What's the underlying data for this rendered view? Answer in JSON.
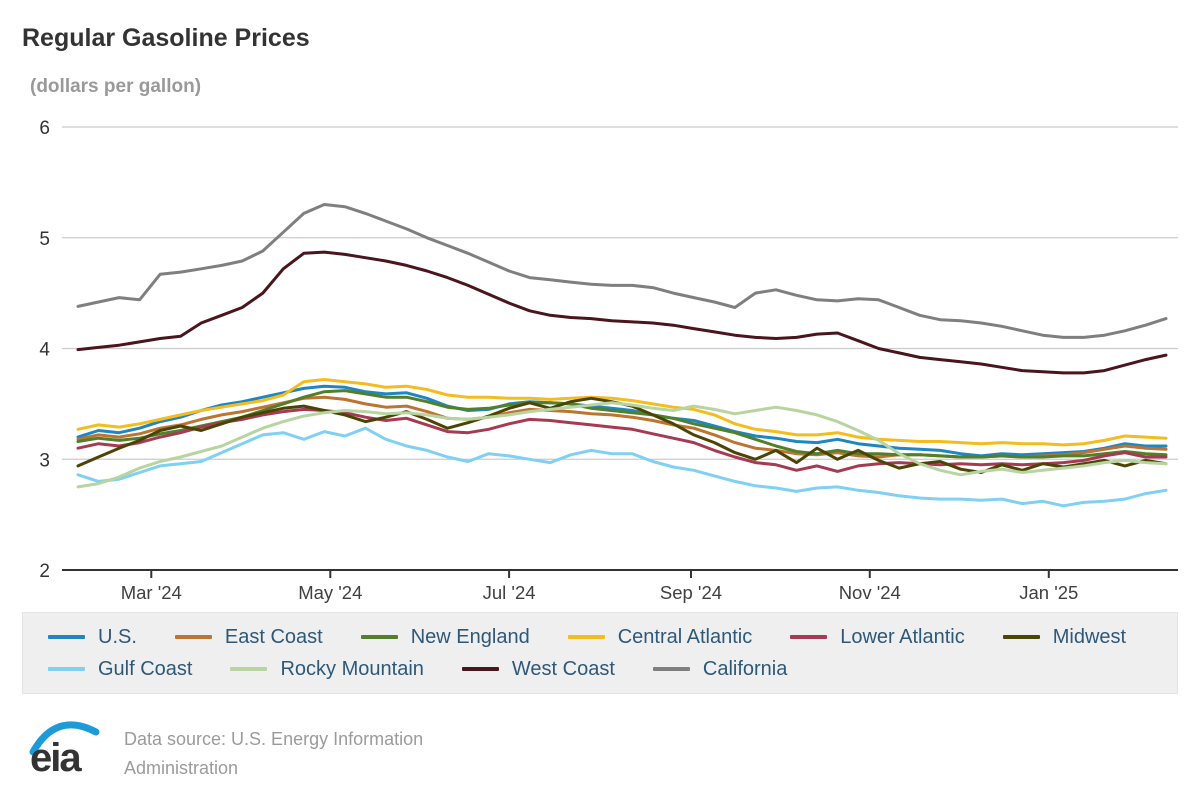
{
  "header": {
    "title": "Regular Gasoline Prices",
    "subtitle": "(dollars per gallon)"
  },
  "footer": {
    "logo_text": "eia",
    "source_line1": "Data source: U.S. Energy Information",
    "source_line2": "Administration"
  },
  "colors": {
    "grid": "#cccccc",
    "axis": "#333333",
    "tick_label": "#404040",
    "legend_bg": "#efefef",
    "legend_text": "#2e5878",
    "eia_blue": "#1d9bd8"
  },
  "chart_data": {
    "type": "line",
    "title": "Regular Gasoline Prices",
    "xlabel": "",
    "ylabel": "dollars per gallon",
    "ylim": [
      2,
      6
    ],
    "yticks": [
      2,
      3,
      4,
      5,
      6
    ],
    "grid": "horizontal",
    "legend_position": "bottom",
    "x_unit": "weekly, Feb 2024 - Feb 2025",
    "xticks": [
      {
        "label": "Mar '24",
        "pos": 3.57
      },
      {
        "label": "May '24",
        "pos": 12.29
      },
      {
        "label": "Jul '24",
        "pos": 21.0
      },
      {
        "label": "Sep '24",
        "pos": 29.86
      },
      {
        "label": "Nov '24",
        "pos": 38.57
      },
      {
        "label": "Jan '25",
        "pos": 47.29
      }
    ],
    "series": [
      {
        "name": "U.S.",
        "color": "#1e87c2",
        "values": [
          3.2,
          3.26,
          3.24,
          3.28,
          3.34,
          3.38,
          3.44,
          3.49,
          3.52,
          3.56,
          3.6,
          3.64,
          3.66,
          3.65,
          3.61,
          3.59,
          3.6,
          3.55,
          3.48,
          3.44,
          3.45,
          3.5,
          3.52,
          3.51,
          3.5,
          3.48,
          3.46,
          3.44,
          3.4,
          3.37,
          3.35,
          3.3,
          3.25,
          3.21,
          3.19,
          3.16,
          3.15,
          3.18,
          3.14,
          3.12,
          3.1,
          3.09,
          3.08,
          3.05,
          3.03,
          3.05,
          3.04,
          3.05,
          3.06,
          3.07,
          3.1,
          3.14,
          3.12,
          3.12
        ]
      },
      {
        "name": "East Coast",
        "color": "#bd7430",
        "values": [
          3.18,
          3.22,
          3.2,
          3.23,
          3.28,
          3.31,
          3.36,
          3.4,
          3.43,
          3.47,
          3.51,
          3.55,
          3.56,
          3.54,
          3.5,
          3.47,
          3.48,
          3.43,
          3.37,
          3.36,
          3.38,
          3.42,
          3.45,
          3.44,
          3.43,
          3.41,
          3.4,
          3.38,
          3.35,
          3.31,
          3.28,
          3.22,
          3.15,
          3.1,
          3.08,
          3.05,
          3.04,
          3.06,
          3.03,
          3.02,
          3.04,
          3.04,
          3.03,
          3.02,
          3.02,
          3.03,
          3.02,
          3.03,
          3.04,
          3.06,
          3.09,
          3.12,
          3.1,
          3.09
        ]
      },
      {
        "name": "New England",
        "color": "#527f2a",
        "values": [
          3.16,
          3.19,
          3.17,
          3.19,
          3.23,
          3.26,
          3.3,
          3.34,
          3.38,
          3.44,
          3.5,
          3.56,
          3.61,
          3.62,
          3.59,
          3.56,
          3.56,
          3.52,
          3.47,
          3.45,
          3.46,
          3.49,
          3.51,
          3.51,
          3.5,
          3.46,
          3.44,
          3.42,
          3.4,
          3.37,
          3.32,
          3.28,
          3.24,
          3.18,
          3.12,
          3.07,
          3.05,
          3.08,
          3.05,
          3.05,
          3.04,
          3.04,
          3.03,
          3.02,
          3.02,
          3.03,
          3.02,
          3.02,
          3.03,
          3.03,
          3.05,
          3.07,
          3.05,
          3.04
        ]
      },
      {
        "name": "Central Atlantic",
        "color": "#f4bc1c",
        "values": [
          3.27,
          3.31,
          3.29,
          3.32,
          3.36,
          3.4,
          3.44,
          3.47,
          3.5,
          3.53,
          3.58,
          3.7,
          3.72,
          3.7,
          3.68,
          3.65,
          3.66,
          3.63,
          3.58,
          3.56,
          3.56,
          3.55,
          3.55,
          3.54,
          3.55,
          3.56,
          3.55,
          3.53,
          3.5,
          3.47,
          3.45,
          3.4,
          3.32,
          3.27,
          3.25,
          3.22,
          3.22,
          3.24,
          3.2,
          3.18,
          3.17,
          3.16,
          3.16,
          3.15,
          3.14,
          3.15,
          3.14,
          3.14,
          3.13,
          3.14,
          3.17,
          3.21,
          3.2,
          3.19
        ]
      },
      {
        "name": "Lower Atlantic",
        "color": "#a63a52",
        "values": [
          3.1,
          3.14,
          3.12,
          3.15,
          3.2,
          3.24,
          3.29,
          3.33,
          3.36,
          3.4,
          3.43,
          3.45,
          3.44,
          3.42,
          3.38,
          3.35,
          3.37,
          3.31,
          3.25,
          3.24,
          3.27,
          3.32,
          3.36,
          3.35,
          3.33,
          3.31,
          3.29,
          3.27,
          3.23,
          3.19,
          3.15,
          3.08,
          3.02,
          2.97,
          2.95,
          2.9,
          2.94,
          2.89,
          2.94,
          2.96,
          2.97,
          2.96,
          2.95,
          2.96,
          2.95,
          2.96,
          2.95,
          2.96,
          2.97,
          2.99,
          3.03,
          3.06,
          3.02,
          3.02
        ]
      },
      {
        "name": "Midwest",
        "color": "#4a4405",
        "values": [
          2.94,
          3.02,
          3.1,
          3.17,
          3.26,
          3.3,
          3.26,
          3.32,
          3.38,
          3.42,
          3.46,
          3.48,
          3.44,
          3.4,
          3.34,
          3.38,
          3.43,
          3.36,
          3.28,
          3.33,
          3.39,
          3.46,
          3.51,
          3.46,
          3.52,
          3.55,
          3.52,
          3.48,
          3.4,
          3.32,
          3.22,
          3.15,
          3.06,
          3.0,
          3.08,
          2.97,
          3.1,
          3.0,
          3.08,
          2.99,
          2.92,
          2.96,
          2.98,
          2.91,
          2.88,
          2.95,
          2.9,
          2.96,
          2.93,
          2.96,
          2.99,
          2.94,
          2.99,
          2.96
        ]
      },
      {
        "name": "Gulf Coast",
        "color": "#7fd0f2",
        "values": [
          2.86,
          2.8,
          2.82,
          2.88,
          2.94,
          2.96,
          2.98,
          3.06,
          3.14,
          3.22,
          3.24,
          3.18,
          3.25,
          3.21,
          3.28,
          3.18,
          3.12,
          3.08,
          3.02,
          2.98,
          3.05,
          3.03,
          3.0,
          2.97,
          3.04,
          3.08,
          3.05,
          3.05,
          2.98,
          2.93,
          2.9,
          2.85,
          2.8,
          2.76,
          2.74,
          2.71,
          2.74,
          2.75,
          2.72,
          2.7,
          2.67,
          2.65,
          2.64,
          2.64,
          2.63,
          2.64,
          2.6,
          2.62,
          2.58,
          2.61,
          2.62,
          2.64,
          2.69,
          2.72
        ]
      },
      {
        "name": "Rocky Mountain",
        "color": "#b8d4a0",
        "values": [
          2.75,
          2.78,
          2.84,
          2.92,
          2.98,
          3.02,
          3.07,
          3.12,
          3.2,
          3.28,
          3.34,
          3.39,
          3.42,
          3.44,
          3.43,
          3.41,
          3.42,
          3.4,
          3.37,
          3.36,
          3.38,
          3.4,
          3.43,
          3.45,
          3.47,
          3.49,
          3.51,
          3.49,
          3.46,
          3.44,
          3.48,
          3.45,
          3.41,
          3.44,
          3.47,
          3.44,
          3.4,
          3.34,
          3.26,
          3.17,
          3.05,
          2.96,
          2.9,
          2.86,
          2.89,
          2.91,
          2.88,
          2.9,
          2.92,
          2.94,
          2.97,
          2.99,
          2.97,
          2.96
        ]
      },
      {
        "name": "West Coast",
        "color": "#4a151c",
        "values": [
          3.99,
          4.01,
          4.03,
          4.06,
          4.09,
          4.11,
          4.23,
          4.3,
          4.37,
          4.5,
          4.72,
          4.86,
          4.87,
          4.85,
          4.82,
          4.79,
          4.75,
          4.7,
          4.64,
          4.57,
          4.49,
          4.41,
          4.34,
          4.3,
          4.28,
          4.27,
          4.25,
          4.24,
          4.23,
          4.21,
          4.18,
          4.15,
          4.12,
          4.1,
          4.09,
          4.1,
          4.13,
          4.14,
          4.07,
          4.0,
          3.96,
          3.92,
          3.9,
          3.88,
          3.86,
          3.83,
          3.8,
          3.79,
          3.78,
          3.78,
          3.8,
          3.85,
          3.9,
          3.94
        ]
      },
      {
        "name": "California",
        "color": "#7f7f7f",
        "values": [
          4.38,
          4.42,
          4.46,
          4.44,
          4.67,
          4.69,
          4.72,
          4.75,
          4.79,
          4.88,
          5.05,
          5.22,
          5.3,
          5.28,
          5.22,
          5.15,
          5.08,
          5.0,
          4.93,
          4.86,
          4.78,
          4.7,
          4.64,
          4.62,
          4.6,
          4.58,
          4.57,
          4.57,
          4.55,
          4.5,
          4.46,
          4.42,
          4.37,
          4.5,
          4.53,
          4.48,
          4.44,
          4.43,
          4.45,
          4.44,
          4.37,
          4.3,
          4.26,
          4.25,
          4.23,
          4.2,
          4.16,
          4.12,
          4.1,
          4.1,
          4.12,
          4.16,
          4.21,
          4.27
        ]
      }
    ]
  }
}
